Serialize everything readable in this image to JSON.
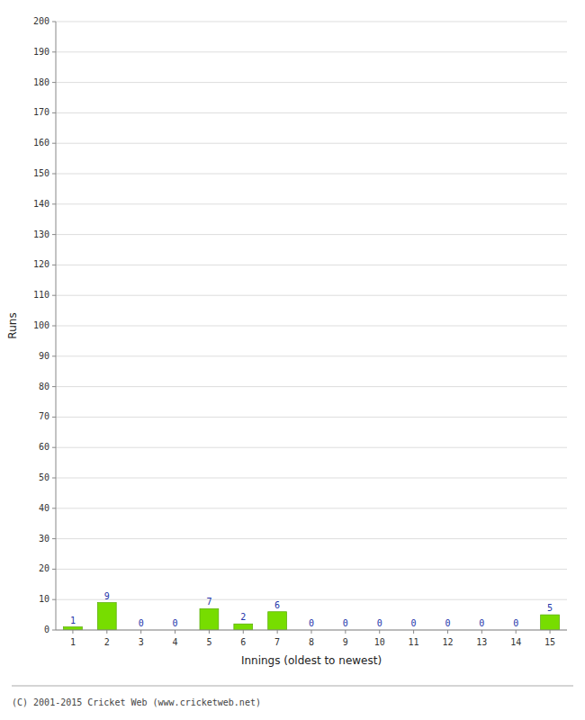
{
  "chart_data": {
    "type": "bar",
    "xlabel": "Innings (oldest to newest)",
    "ylabel": "Runs",
    "categories": [
      1,
      2,
      3,
      4,
      5,
      6,
      7,
      8,
      9,
      10,
      11,
      12,
      13,
      14,
      15
    ],
    "values": [
      1,
      9,
      0,
      0,
      7,
      2,
      6,
      0,
      0,
      0,
      0,
      0,
      0,
      0,
      5
    ],
    "color": "#77dd00",
    "ylim": [
      0,
      200
    ],
    "yticks": [
      0,
      10,
      20,
      30,
      40,
      50,
      60,
      70,
      80,
      90,
      100,
      110,
      120,
      130,
      140,
      150,
      160,
      170,
      180,
      190,
      200
    ],
    "grid": true,
    "data_labels": true,
    "footer": "(C) 2001-2015 Cricket Web (www.cricketweb.net)"
  }
}
